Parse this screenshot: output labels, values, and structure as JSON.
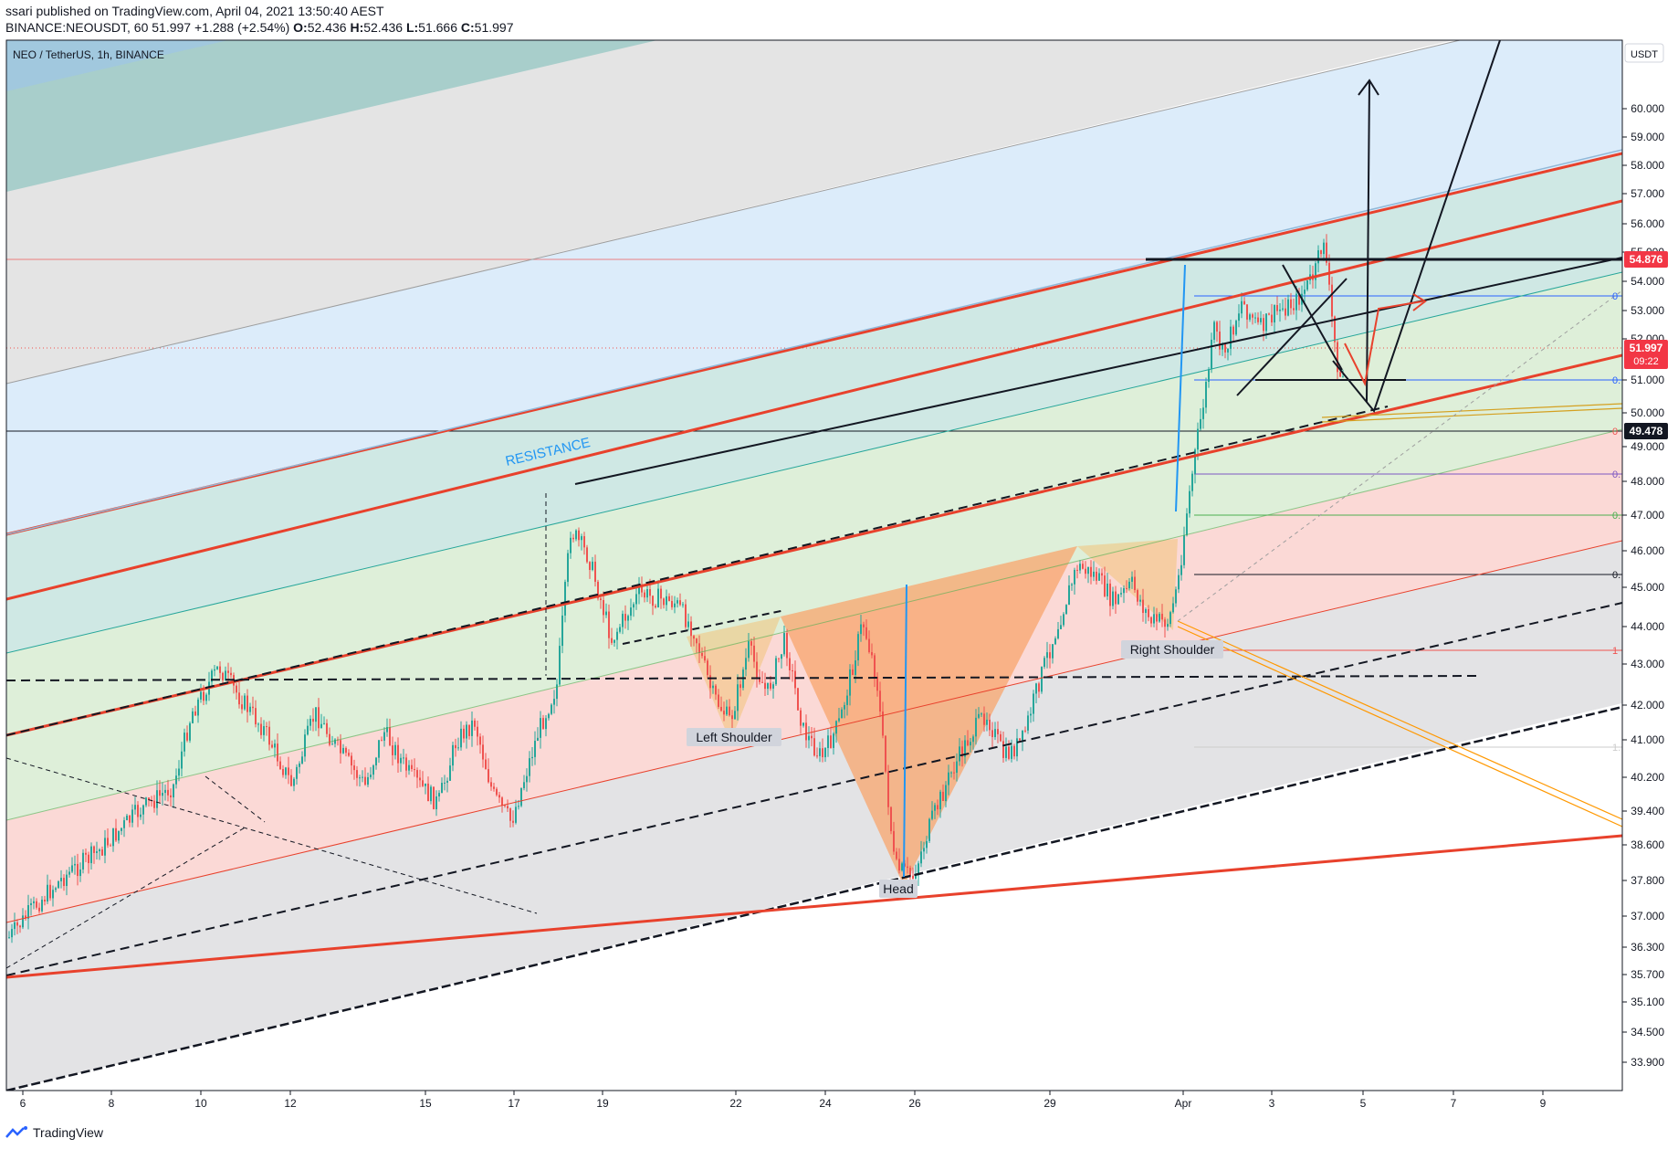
{
  "header": {
    "published_line": "ssari published on TradingView.com, April 04, 2021 13:50:40 AEST",
    "symbol": "BINANCE:NEOUSDT, 60",
    "last": "51.997",
    "change": "+1.288 (+2.54%)",
    "o_label": "O:",
    "o_value": "52.436",
    "h_label": "H:",
    "h_value": "52.436",
    "l_label": "L:",
    "l_value": "51.666",
    "c_label": "C:",
    "c_value": "51.997"
  },
  "chart_title": "NEO / TetherUS, 1h, BINANCE",
  "currency": "USDT",
  "footer_brand": "TradingView",
  "colors": {
    "red_line": "#e8412c",
    "up_candle": "#26a69a",
    "down_candle": "#ef5350",
    "resistance_text": "#2196f3",
    "price_tag_current": "#f23645",
    "price_tag_level": "#131722"
  },
  "chart_data": {
    "type": "candlestick",
    "x_tick_labels": [
      "6",
      "8",
      "10",
      "12",
      "15",
      "17",
      "19",
      "22",
      "24",
      "26",
      "29",
      "Apr",
      "3",
      "5",
      "7",
      "9"
    ],
    "y_tick_labels": [
      "60.000",
      "59.000",
      "58.000",
      "57.000",
      "56.000",
      "55.000",
      "54.000",
      "53.000",
      "52.000",
      "51.000",
      "50.000",
      "49.000",
      "48.000",
      "47.000",
      "46.000",
      "45.000",
      "44.000",
      "43.000",
      "42.000",
      "41.000",
      "40.200",
      "39.400",
      "38.600",
      "37.800",
      "37.000",
      "36.300",
      "35.700",
      "35.100",
      "34.500",
      "33.900"
    ],
    "price_tags": [
      {
        "label": "54.876",
        "kind": "level"
      },
      {
        "label": "51.997",
        "sub": "09:22",
        "kind": "current"
      },
      {
        "label": "49.478",
        "kind": "level"
      }
    ],
    "fib_labels": [
      "0",
      "0.",
      "0",
      "0.",
      "0.",
      "0.",
      "1",
      "1."
    ],
    "annotations": [
      "RESISTANCE",
      "Left Shoulder",
      "Head",
      "Right Shoulder"
    ],
    "pattern": "inverse head and shoulders",
    "ohlc_last": {
      "open": 52.436,
      "high": 52.436,
      "low": 51.666,
      "close": 51.997
    }
  }
}
